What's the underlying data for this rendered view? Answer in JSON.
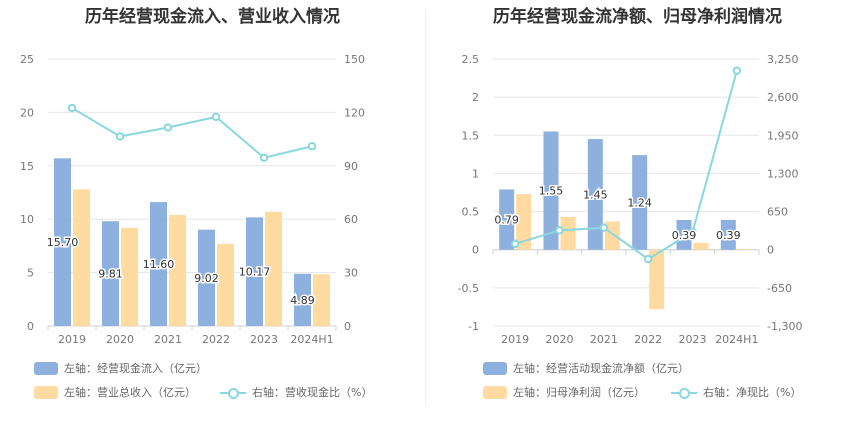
{
  "colors": {
    "bar_primary": "#8eb0df",
    "bar_secondary": "#ffdba2",
    "line": "#88d8de",
    "grid": "#e6e6e6",
    "axis": "#d0d0d0"
  },
  "chart_data": [
    {
      "type": "bar",
      "title": "历年经营现金流入、营业收入情况",
      "categories": [
        "2019",
        "2020",
        "2021",
        "2022",
        "2023",
        "2024H1"
      ],
      "left_axis": {
        "ticks": [
          "0",
          "5",
          "10",
          "15",
          "20",
          "25"
        ],
        "ylim": [
          0,
          25
        ]
      },
      "right_axis": {
        "ticks": [
          "0",
          "30",
          "60",
          "90",
          "120",
          "150"
        ],
        "ylim": [
          0,
          150
        ]
      },
      "series": [
        {
          "name": "左轴：经营现金流入（亿元）",
          "type": "bar",
          "axis": "left",
          "values": [
            15.7,
            9.81,
            11.6,
            9.02,
            10.17,
            4.89
          ],
          "labels": [
            "15.70",
            "9.81",
            "11.60",
            "9.02",
            "10.17",
            "4.89"
          ]
        },
        {
          "name": "左轴：营业总收入（亿元）",
          "type": "bar",
          "axis": "left",
          "values": [
            12.8,
            9.2,
            10.4,
            7.7,
            10.7,
            4.85
          ]
        },
        {
          "name": "右轴：营收现金比（%）",
          "type": "line",
          "axis": "right",
          "values": [
            122.5,
            106.5,
            111.5,
            117.5,
            94.5,
            101
          ]
        }
      ]
    },
    {
      "type": "bar",
      "title": "历年经营现金流净额、归母净利润情况",
      "categories": [
        "2019",
        "2020",
        "2021",
        "2022",
        "2023",
        "2024H1"
      ],
      "left_axis": {
        "ticks": [
          "-1",
          "-0.5",
          "0",
          "0.5",
          "1",
          "1.5",
          "2",
          "2.5"
        ],
        "ylim": [
          -1,
          2.5
        ]
      },
      "right_axis": {
        "ticks": [
          "-1,300",
          "-650",
          "0",
          "650",
          "1,300",
          "1,950",
          "2,600",
          "3,250"
        ],
        "ylim": [
          -1300,
          3250
        ]
      },
      "series": [
        {
          "name": "左轴：经营活动现金流净额（亿元）",
          "type": "bar",
          "axis": "left",
          "values": [
            0.79,
            1.55,
            1.45,
            1.24,
            0.39,
            0.39
          ],
          "labels": [
            "0.79",
            "1.55",
            "1.45",
            "1.24",
            "0.39",
            "0.39"
          ]
        },
        {
          "name": "左轴：归母净利润（亿元）",
          "type": "bar",
          "axis": "left",
          "values": [
            0.73,
            0.43,
            0.37,
            -0.78,
            0.09,
            0.01
          ]
        },
        {
          "name": "右轴：净现比（%）",
          "type": "line",
          "axis": "right",
          "values": [
            100,
            330,
            375,
            -160,
            300,
            3050
          ]
        }
      ]
    }
  ]
}
